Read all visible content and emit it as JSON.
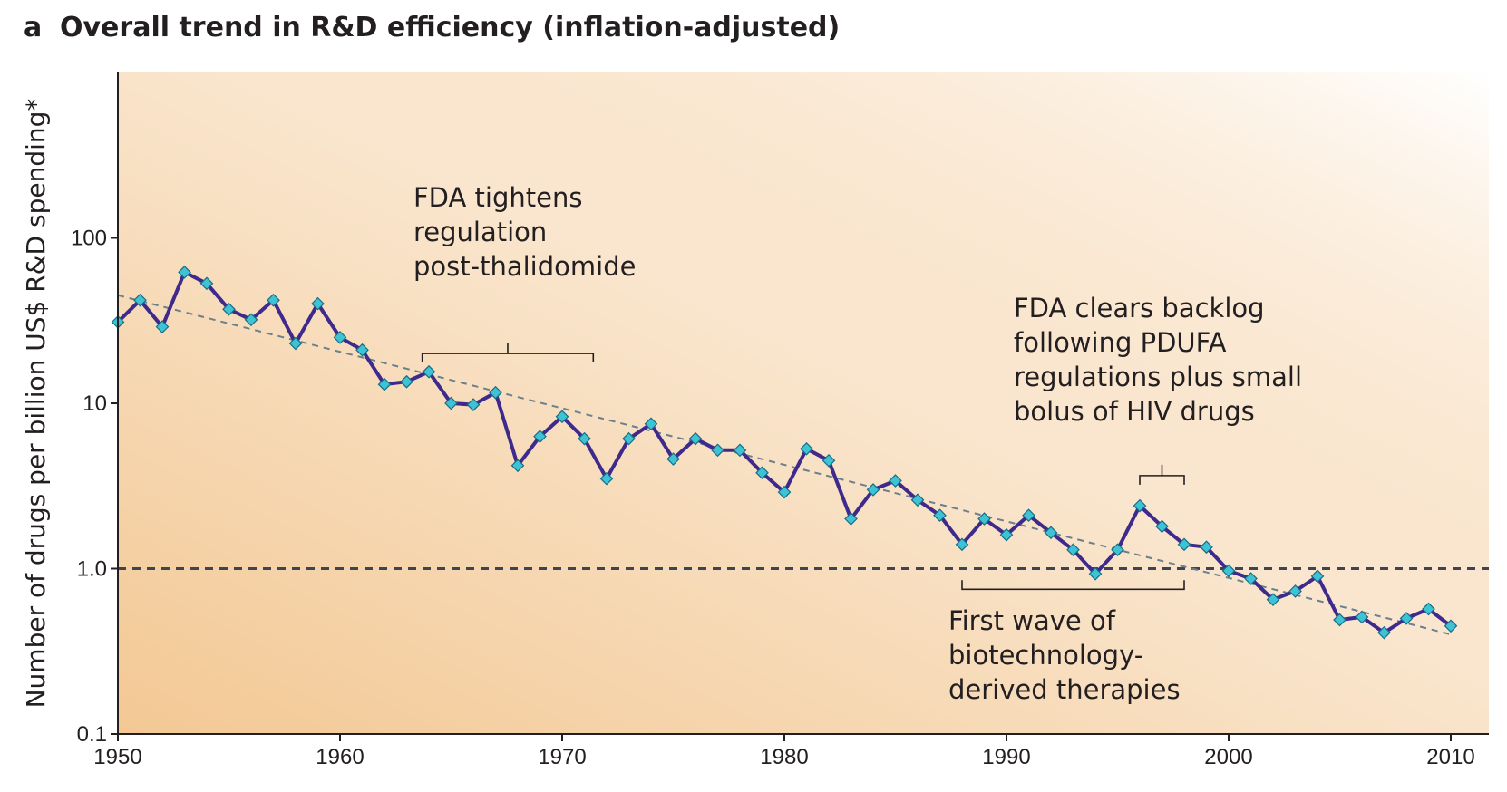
{
  "chart_data": {
    "type": "line",
    "panel_letter": "a",
    "title": "Overall trend in R&D efficiency (inflation-adjusted)",
    "xlabel": "",
    "ylabel": "Number of drugs per billion US$ R&D spending*",
    "y_scale": "log",
    "xlim": [
      1950,
      2011
    ],
    "ylim": [
      0.1,
      1000
    ],
    "x_ticks": [
      1950,
      1960,
      1970,
      1980,
      1990,
      2000,
      2010
    ],
    "y_ticks": [
      {
        "value": 0.1,
        "label": "0.1"
      },
      {
        "value": 1,
        "label": "1.0"
      },
      {
        "value": 10,
        "label": "10"
      },
      {
        "value": 100,
        "label": "100"
      }
    ],
    "reference_line": {
      "y": 1.0,
      "style": "dashed"
    },
    "trend_line": {
      "x": [
        1950,
        2010
      ],
      "y": [
        45,
        0.4
      ],
      "style": "dashed"
    },
    "series": [
      {
        "name": "R&D efficiency",
        "x": [
          1950,
          1951,
          1952,
          1953,
          1954,
          1955,
          1956,
          1957,
          1958,
          1959,
          1960,
          1961,
          1962,
          1963,
          1964,
          1965,
          1966,
          1967,
          1968,
          1969,
          1970,
          1971,
          1972,
          1973,
          1974,
          1975,
          1976,
          1977,
          1978,
          1979,
          1980,
          1981,
          1982,
          1983,
          1984,
          1985,
          1986,
          1987,
          1988,
          1989,
          1990,
          1991,
          1992,
          1993,
          1994,
          1995,
          1996,
          1997,
          1998,
          1999,
          2000,
          2001,
          2002,
          2003,
          2004,
          2005,
          2006,
          2007,
          2008,
          2009,
          2010
        ],
        "values": [
          31,
          42,
          29,
          62,
          53,
          37,
          32,
          42,
          23,
          40,
          25,
          21,
          13,
          13.5,
          15.5,
          10,
          9.8,
          11.6,
          4.2,
          6.3,
          8.3,
          6.1,
          3.5,
          6.1,
          7.5,
          4.6,
          6.1,
          5.2,
          5.2,
          3.8,
          2.9,
          5.3,
          4.5,
          2,
          3,
          3.4,
          2.6,
          2.1,
          1.4,
          2,
          1.6,
          2.1,
          1.65,
          1.3,
          0.93,
          1.3,
          2.4,
          1.8,
          1.4,
          1.35,
          0.97,
          0.87,
          0.65,
          0.73,
          0.9,
          0.49,
          0.51,
          0.41,
          0.5,
          0.57,
          0.45
        ]
      }
    ],
    "annotations": [
      {
        "lines": [
          "FDA tightens",
          "regulation",
          "post-thalidomide"
        ],
        "bracket_x": [
          1963.7,
          1971.4
        ],
        "bracket_y": 20
      },
      {
        "lines": [
          "FDA clears backlog",
          "following PDUFA",
          "regulations plus small",
          "bolus of HIV drugs"
        ],
        "bracket_x": [
          1996,
          1998
        ],
        "bracket_y": 3.65
      },
      {
        "lines": [
          "First wave of",
          "biotechnology-",
          "derived therapies"
        ],
        "bracket_x": [
          1988,
          1998
        ],
        "bracket_y": 0.75
      }
    ],
    "colors": {
      "line": "#3d2a8c",
      "marker": "#3ec3d4",
      "marker_edge": "#1a6c85",
      "trend": "#6b7f8c",
      "reference": "#3e4552",
      "bg_start": "#f3c894",
      "bg_end": "#ffffff",
      "axis": "#231f20"
    }
  }
}
